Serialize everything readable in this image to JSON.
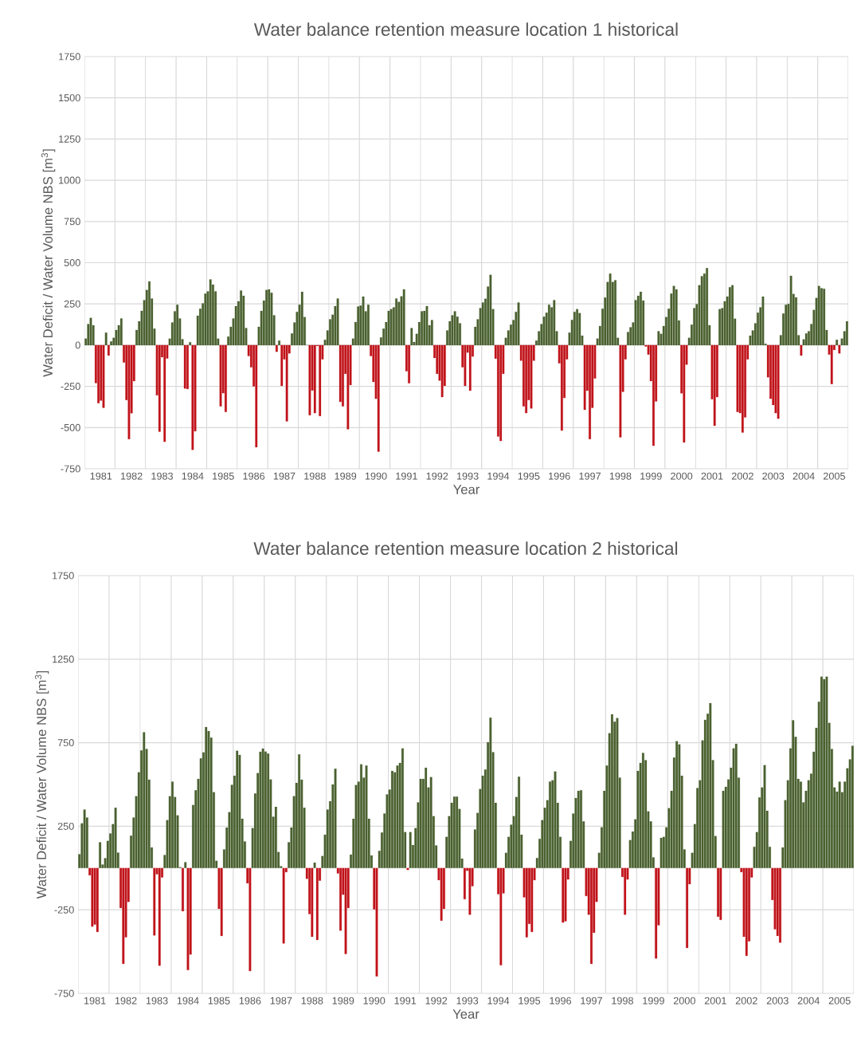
{
  "chart_data": [
    {
      "type": "bar",
      "title": "Water balance retention measure location 1 historical",
      "xlabel": "Year",
      "ylabel": "Water Deficit / Water Volume NBS [m$^{3}$]",
      "categories": [
        null,
        null,
        null,
        null,
        null,
        null,
        "1981",
        null,
        null,
        null,
        null,
        null,
        null,
        null,
        null,
        null,
        null,
        null,
        "1982",
        null,
        null,
        null,
        null,
        null,
        null,
        null,
        null,
        null,
        null,
        null,
        "1983",
        null,
        null,
        null,
        null,
        null,
        null,
        null,
        null,
        null,
        null,
        null,
        "1984",
        null,
        null,
        null,
        null,
        null,
        null,
        null,
        null,
        null,
        null,
        null,
        "1985",
        null,
        null,
        null,
        null,
        null,
        null,
        null,
        null,
        null,
        null,
        null,
        "1986",
        null,
        null,
        null,
        null,
        null,
        null,
        null,
        null,
        null,
        null,
        null,
        "1987",
        null,
        null,
        null,
        null,
        null,
        null,
        null,
        null,
        null,
        null,
        null,
        "1988",
        null,
        null,
        null,
        null,
        null,
        null,
        null,
        null,
        null,
        null,
        null,
        "1989",
        null,
        null,
        null,
        null,
        null,
        null,
        null,
        null,
        null,
        null,
        null,
        "1990",
        null,
        null,
        null,
        null,
        null,
        null,
        null,
        null,
        null,
        null,
        null,
        "1991",
        null,
        null,
        null,
        null,
        null,
        null,
        null,
        null,
        null,
        null,
        null,
        "1992",
        null,
        null,
        null,
        null,
        null,
        null,
        null,
        null,
        null,
        null,
        null,
        "1993",
        null,
        null,
        null,
        null,
        null,
        null,
        null,
        null,
        null,
        null,
        null,
        "1994",
        null,
        null,
        null,
        null,
        null,
        null,
        null,
        null,
        null,
        null,
        null,
        "1995",
        null,
        null,
        null,
        null,
        null,
        null,
        null,
        null,
        null,
        null,
        null,
        "1996",
        null,
        null,
        null,
        null,
        null,
        null,
        null,
        null,
        null,
        null,
        null,
        "1997",
        null,
        null,
        null,
        null,
        null,
        null,
        null,
        null,
        null,
        null,
        null,
        "1998",
        null,
        null,
        null,
        null,
        null,
        null,
        null,
        null,
        null,
        null,
        null,
        "1999",
        null,
        null,
        null,
        null,
        null,
        null,
        null,
        null,
        null,
        null,
        null,
        "2000",
        null,
        null,
        null,
        null,
        null,
        null,
        null,
        null,
        null,
        null,
        null,
        "2001",
        null,
        null,
        null,
        null,
        null,
        null,
        null,
        null,
        null,
        null,
        null,
        "2002",
        null,
        null,
        null,
        null,
        null,
        null,
        null,
        null,
        null,
        null,
        null,
        "2003",
        null,
        null,
        null,
        null,
        null,
        null,
        null,
        null,
        null,
        null,
        null,
        "2004",
        null,
        null,
        null,
        null,
        null,
        null,
        null,
        null,
        null,
        null,
        null,
        "2005",
        null,
        null,
        null,
        null,
        null
      ],
      "series": [
        {
          "color": "#4a6130",
          "values": [
            40,
            128,
            165,
            120,
            null,
            null,
            null,
            null,
            76,
            null,
            23,
            44,
            92,
            120,
            162,
            null,
            null,
            null,
            null,
            null,
            92,
            144,
            208,
            273,
            334,
            386,
            283,
            100,
            null,
            null,
            null,
            null,
            null,
            39,
            137,
            205,
            245,
            162,
            36,
            null,
            null,
            18,
            null,
            null,
            178,
            221,
            254,
            313,
            326,
            399,
            367,
            326,
            39,
            null,
            null,
            null,
            52,
            111,
            162,
            237,
            266,
            331,
            299,
            103,
            null,
            null,
            null,
            null,
            111,
            208,
            270,
            334,
            338,
            318,
            181,
            null,
            27,
            null,
            null,
            null,
            null,
            71,
            137,
            202,
            245,
            323,
            170,
            0,
            null,
            null,
            null,
            null,
            null,
            null,
            32,
            89,
            157,
            184,
            237,
            283,
            null,
            null,
            null,
            null,
            null,
            40,
            140,
            234,
            240,
            294,
            205,
            245,
            null,
            null,
            null,
            null,
            47,
            100,
            140,
            208,
            218,
            229,
            283,
            262,
            296,
            338,
            null,
            null,
            103,
            19,
            68,
            140,
            205,
            208,
            237,
            121,
            152,
            null,
            null,
            null,
            null,
            null,
            89,
            145,
            181,
            205,
            173,
            132,
            null,
            null,
            null,
            null,
            null,
            111,
            157,
            224,
            258,
            281,
            355,
            426,
            218,
            null,
            null,
            null,
            null,
            44,
            89,
            124,
            152,
            202,
            258,
            null,
            null,
            null,
            null,
            null,
            null,
            27,
            84,
            128,
            173,
            197,
            245,
            229,
            273,
            84,
            null,
            null,
            null,
            null,
            76,
            153,
            202,
            218,
            194,
            57,
            null,
            null,
            null,
            null,
            null,
            40,
            116,
            221,
            289,
            383,
            434,
            383,
            394,
            44,
            null,
            null,
            null,
            79,
            108,
            137,
            273,
            299,
            323,
            270,
            null,
            null,
            null,
            null,
            null,
            84,
            68,
            116,
            170,
            221,
            313,
            359,
            338,
            149,
            null,
            null,
            null,
            44,
            124,
            224,
            249,
            363,
            418,
            434,
            467,
            121,
            null,
            null,
            null,
            218,
            224,
            266,
            294,
            351,
            363,
            160,
            null,
            null,
            null,
            null,
            null,
            57,
            89,
            132,
            197,
            229,
            294,
            8,
            null,
            null,
            null,
            null,
            null,
            60,
            192,
            245,
            250,
            420,
            310,
            290,
            60,
            null,
            35,
            71,
            84,
            128,
            213,
            286,
            359,
            345,
            342,
            92,
            null,
            null,
            null,
            32,
            null,
            40,
            84,
            144
          ]
        },
        {
          "color": "#c0131a",
          "values": [
            null,
            null,
            null,
            null,
            -230,
            -352,
            -336,
            -380,
            null,
            -63,
            null,
            null,
            null,
            null,
            null,
            -105,
            -333,
            -570,
            -413,
            -218,
            null,
            null,
            null,
            null,
            null,
            null,
            null,
            null,
            -304,
            -525,
            -73,
            -586,
            -81,
            null,
            null,
            null,
            null,
            null,
            null,
            -263,
            -266,
            null,
            -635,
            -522,
            null,
            null,
            null,
            null,
            null,
            null,
            null,
            null,
            null,
            -371,
            -291,
            -405,
            null,
            null,
            null,
            null,
            null,
            null,
            null,
            null,
            -66,
            -134,
            -250,
            -619,
            null,
            null,
            null,
            null,
            null,
            null,
            null,
            -40,
            null,
            -247,
            -86,
            -462,
            -50,
            null,
            null,
            null,
            null,
            null,
            null,
            null,
            -425,
            -275,
            -412,
            -5,
            -430,
            -86,
            null,
            null,
            null,
            null,
            null,
            null,
            -344,
            -371,
            -174,
            -510,
            -242,
            null,
            null,
            null,
            null,
            null,
            null,
            null,
            -66,
            -223,
            -325,
            -646,
            null,
            null,
            null,
            null,
            null,
            null,
            null,
            null,
            null,
            null,
            -158,
            -231,
            null,
            null,
            null,
            null,
            null,
            null,
            null,
            null,
            null,
            -78,
            -174,
            -215,
            -315,
            -247,
            null,
            null,
            null,
            null,
            null,
            null,
            -134,
            -247,
            -45,
            -276,
            -69,
            null,
            null,
            null,
            null,
            null,
            null,
            null,
            null,
            -82,
            -554,
            -581,
            -174,
            null,
            null,
            null,
            null,
            null,
            null,
            -94,
            -371,
            -412,
            -333,
            -384,
            -94,
            null,
            null,
            null,
            null,
            null,
            null,
            null,
            null,
            null,
            -110,
            -518,
            -320,
            -86,
            null,
            null,
            null,
            null,
            null,
            null,
            -392,
            -276,
            -570,
            -380,
            -202,
            null,
            null,
            null,
            null,
            null,
            null,
            null,
            null,
            null,
            -559,
            -283,
            -86,
            null,
            null,
            null,
            null,
            null,
            null,
            null,
            -8,
            -57,
            -218,
            -610,
            -341,
            null,
            null,
            null,
            null,
            null,
            null,
            null,
            null,
            null,
            -292,
            -590,
            -118,
            null,
            null,
            null,
            null,
            null,
            null,
            null,
            null,
            null,
            -328,
            -489,
            -315,
            null,
            null,
            null,
            null,
            null,
            null,
            null,
            -405,
            -412,
            -530,
            -438,
            -86,
            null,
            null,
            null,
            null,
            null,
            null,
            null,
            -195,
            -325,
            -363,
            -412,
            -446,
            null,
            null,
            null,
            null,
            null,
            null,
            null,
            null,
            -63,
            null,
            null,
            null,
            null,
            null,
            null,
            null,
            null,
            null,
            null,
            -57,
            -236,
            -29,
            null,
            -50,
            null,
            null,
            null
          ]
        }
      ],
      "ylim": [
        -750,
        1750
      ],
      "yticks": [
        -750,
        -500,
        -250,
        0,
        250,
        500,
        750,
        1000,
        1250,
        1500,
        1750
      ],
      "grid": true
    },
    {
      "type": "bar",
      "title": "Water balance retention measure location 2 historical",
      "xlabel": "Year",
      "ylabel": "Water Deficit / Water Volume NBS [m$^{3}$]",
      "categories": [
        null,
        null,
        null,
        null,
        null,
        null,
        "1981",
        null,
        null,
        null,
        null,
        null,
        null,
        null,
        null,
        null,
        null,
        null,
        "1982",
        null,
        null,
        null,
        null,
        null,
        null,
        null,
        null,
        null,
        null,
        null,
        "1983",
        null,
        null,
        null,
        null,
        null,
        null,
        null,
        null,
        null,
        null,
        null,
        "1984",
        null,
        null,
        null,
        null,
        null,
        null,
        null,
        null,
        null,
        null,
        null,
        "1985",
        null,
        null,
        null,
        null,
        null,
        null,
        null,
        null,
        null,
        null,
        null,
        "1986",
        null,
        null,
        null,
        null,
        null,
        null,
        null,
        null,
        null,
        null,
        null,
        "1987",
        null,
        null,
        null,
        null,
        null,
        null,
        null,
        null,
        null,
        null,
        null,
        "1988",
        null,
        null,
        null,
        null,
        null,
        null,
        null,
        null,
        null,
        null,
        null,
        "1989",
        null,
        null,
        null,
        null,
        null,
        null,
        null,
        null,
        null,
        null,
        null,
        "1990",
        null,
        null,
        null,
        null,
        null,
        null,
        null,
        null,
        null,
        null,
        null,
        "1991",
        null,
        null,
        null,
        null,
        null,
        null,
        null,
        null,
        null,
        null,
        null,
        "1992",
        null,
        null,
        null,
        null,
        null,
        null,
        null,
        null,
        null,
        null,
        null,
        "1993",
        null,
        null,
        null,
        null,
        null,
        null,
        null,
        null,
        null,
        null,
        null,
        "1994",
        null,
        null,
        null,
        null,
        null,
        null,
        null,
        null,
        null,
        null,
        null,
        "1995",
        null,
        null,
        null,
        null,
        null,
        null,
        null,
        null,
        null,
        null,
        null,
        "1996",
        null,
        null,
        null,
        null,
        null,
        null,
        null,
        null,
        null,
        null,
        null,
        "1997",
        null,
        null,
        null,
        null,
        null,
        null,
        null,
        null,
        null,
        null,
        null,
        "1998",
        null,
        null,
        null,
        null,
        null,
        null,
        null,
        null,
        null,
        null,
        null,
        "1999",
        null,
        null,
        null,
        null,
        null,
        null,
        null,
        null,
        null,
        null,
        null,
        "2000",
        null,
        null,
        null,
        null,
        null,
        null,
        null,
        null,
        null,
        null,
        null,
        "2001",
        null,
        null,
        null,
        null,
        null,
        null,
        null,
        null,
        null,
        null,
        null,
        "2002",
        null,
        null,
        null,
        null,
        null,
        null,
        null,
        null,
        null,
        null,
        null,
        "2003",
        null,
        null,
        null,
        null,
        null,
        null,
        null,
        null,
        null,
        null,
        null,
        "2004",
        null,
        null,
        null,
        null,
        null,
        null,
        null,
        null,
        null,
        null,
        null,
        "2005",
        null,
        null,
        null,
        null,
        null
      ],
      "series": [
        {
          "color": "#4a6130",
          "values": [
            83,
            267,
            350,
            302,
            null,
            null,
            null,
            null,
            154,
            21,
            59,
            162,
            207,
            263,
            361,
            92,
            null,
            null,
            null,
            null,
            194,
            302,
            430,
            573,
            704,
            812,
            712,
            529,
            123,
            null,
            null,
            null,
            null,
            78,
            287,
            430,
            517,
            425,
            315,
            5,
            null,
            35,
            null,
            null,
            377,
            465,
            533,
            656,
            692,
            844,
            820,
            780,
            454,
            43,
            null,
            null,
            111,
            242,
            334,
            498,
            552,
            702,
            677,
            295,
            159,
            null,
            null,
            239,
            446,
            568,
            696,
            715,
            697,
            685,
            530,
            307,
            366,
            96,
            11,
            null,
            null,
            154,
            242,
            430,
            509,
            680,
            529,
            361,
            null,
            null,
            null,
            32,
            null,
            null,
            72,
            199,
            350,
            400,
            500,
            594,
            null,
            null,
            null,
            null,
            null,
            80,
            295,
            497,
            517,
            621,
            541,
            613,
            295,
            75,
            null,
            null,
            103,
            212,
            326,
            440,
            469,
            581,
            573,
            613,
            629,
            716,
            215,
            null,
            215,
            138,
            239,
            393,
            533,
            533,
            600,
            482,
            544,
            310,
            135,
            null,
            null,
            null,
            186,
            310,
            390,
            427,
            427,
            353,
            56,
            null,
            null,
            null,
            null,
            231,
            330,
            473,
            552,
            589,
            753,
            900,
            693,
            390,
            null,
            null,
            null,
            91,
            186,
            259,
            310,
            425,
            546,
            199,
            null,
            null,
            null,
            null,
            null,
            60,
            175,
            287,
            361,
            406,
            517,
            525,
            578,
            390,
            186,
            null,
            null,
            null,
            162,
            326,
            419,
            462,
            466,
            279,
            null,
            null,
            null,
            null,
            null,
            91,
            244,
            462,
            613,
            807,
            920,
            876,
            897,
            541,
            null,
            null,
            null,
            167,
            218,
            291,
            581,
            629,
            689,
            645,
            339,
            279,
            64,
            null,
            null,
            180,
            186,
            244,
            358,
            462,
            661,
            759,
            740,
            552,
            111,
            null,
            null,
            91,
            263,
            478,
            525,
            764,
            887,
            923,
            987,
            645,
            191,
            null,
            null,
            462,
            486,
            530,
            600,
            716,
            743,
            541,
            null,
            null,
            null,
            null,
            null,
            127,
            215,
            422,
            482,
            616,
            342,
            127,
            null,
            null,
            null,
            null,
            123,
            406,
            525,
            716,
            884,
            785,
            533,
            517,
            393,
            462,
            525,
            565,
            696,
            839,
            995,
            1146,
            1130,
            1146,
            868,
            712,
            482,
            457,
            517,
            454,
            517,
            597,
            650,
            732
          ]
        },
        {
          "color": "#c0131a",
          "values": [
            null,
            null,
            null,
            null,
            -43,
            -350,
            -338,
            -382,
            null,
            null,
            null,
            null,
            null,
            null,
            null,
            null,
            -239,
            -573,
            -414,
            -202,
            null,
            null,
            null,
            null,
            null,
            null,
            null,
            null,
            null,
            -403,
            -37,
            -584,
            -56,
            null,
            null,
            null,
            null,
            null,
            null,
            null,
            -258,
            null,
            -610,
            -517,
            null,
            null,
            null,
            null,
            null,
            null,
            null,
            null,
            null,
            null,
            -244,
            -406,
            null,
            null,
            null,
            null,
            null,
            null,
            null,
            null,
            null,
            -91,
            -616,
            null,
            null,
            null,
            null,
            null,
            null,
            null,
            null,
            null,
            null,
            null,
            null,
            -451,
            -24,
            null,
            null,
            null,
            null,
            null,
            null,
            null,
            -64,
            -275,
            -411,
            null,
            -430,
            -75,
            null,
            null,
            null,
            null,
            null,
            null,
            -32,
            -374,
            -159,
            -514,
            -239,
            null,
            null,
            null,
            null,
            null,
            null,
            null,
            null,
            null,
            -247,
            -648,
            null,
            null,
            null,
            null,
            null,
            null,
            null,
            null,
            null,
            null,
            null,
            -11,
            null,
            null,
            null,
            null,
            null,
            null,
            null,
            null,
            null,
            null,
            null,
            -72,
            -315,
            -244,
            null,
            null,
            null,
            null,
            null,
            null,
            null,
            -186,
            -16,
            -279,
            -108,
            null,
            null,
            null,
            null,
            null,
            null,
            null,
            null,
            null,
            -156,
            -581,
            -151,
            null,
            null,
            null,
            null,
            null,
            null,
            null,
            -175,
            -414,
            -334,
            -382,
            -72,
            null,
            null,
            null,
            null,
            null,
            null,
            null,
            null,
            null,
            null,
            -326,
            -318,
            -68,
            null,
            null,
            null,
            null,
            null,
            null,
            -167,
            -279,
            -573,
            -387,
            -202,
            null,
            null,
            null,
            null,
            null,
            null,
            null,
            null,
            null,
            -53,
            -279,
            -68,
            null,
            null,
            null,
            null,
            null,
            null,
            null,
            null,
            null,
            null,
            -541,
            -342,
            null,
            null,
            null,
            null,
            null,
            null,
            null,
            null,
            null,
            null,
            -478,
            -96,
            null,
            null,
            null,
            null,
            null,
            null,
            null,
            null,
            null,
            null,
            -291,
            -310,
            null,
            null,
            null,
            null,
            null,
            null,
            null,
            -24,
            -411,
            -525,
            -438,
            -56,
            null,
            null,
            null,
            null,
            null,
            null,
            null,
            -191,
            -366,
            -406,
            -446,
            null,
            null,
            null,
            null,
            null,
            null,
            null,
            null,
            null,
            null,
            null,
            null,
            null,
            null,
            null,
            null,
            null,
            null,
            null,
            null,
            null,
            null,
            null,
            null,
            null,
            null,
            null,
            null
          ]
        }
      ],
      "ylim": [
        -750,
        1750
      ],
      "yticks": [
        -750,
        -250,
        250,
        750,
        1250,
        1750
      ],
      "grid": true
    }
  ]
}
